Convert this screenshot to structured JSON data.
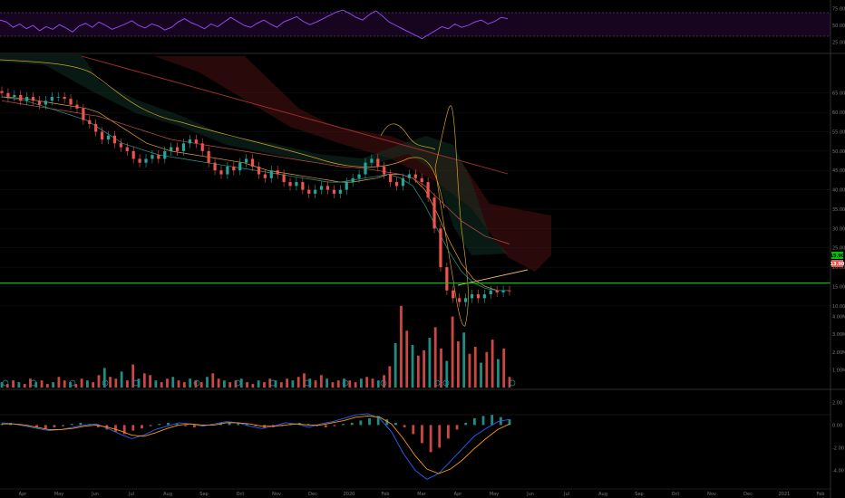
{
  "chart_data": [
    {
      "panel": "rsi",
      "type": "line",
      "ylim": [
        20,
        80
      ],
      "band_levels": [
        70,
        30
      ],
      "y_ticks": [
        "75.00",
        "50.00",
        "25.00"
      ],
      "color": "#9b4dff",
      "values": [
        58,
        55,
        47,
        52,
        45,
        50,
        42,
        48,
        44,
        51,
        46,
        40,
        49,
        53,
        47,
        55,
        50,
        44,
        48,
        52,
        57,
        50,
        46,
        52,
        49,
        43,
        47,
        55,
        60,
        54,
        50,
        45,
        52,
        48,
        55,
        62,
        56,
        50,
        47,
        53,
        58,
        52,
        47,
        55,
        59,
        63,
        56,
        51,
        55,
        60,
        65,
        70,
        73,
        68,
        62,
        58,
        66,
        72,
        64,
        55,
        50,
        45,
        40,
        35,
        30,
        36,
        42,
        48,
        45,
        52,
        47,
        50,
        55,
        58,
        52,
        56,
        62,
        60
      ]
    },
    {
      "panel": "price",
      "type": "candlestick",
      "ylim": [
        9.5,
        75
      ],
      "y_ticks": [
        "65.00",
        "60.00",
        "55.00",
        "50.00",
        "45.00",
        "40.00",
        "35.00",
        "30.00",
        "25.00",
        "20.00",
        "15.00",
        "10.00"
      ],
      "horizontal_line": 15.9,
      "last_price": 13.9,
      "price_tag_top": "15.90",
      "price_tag_bottom": "13.90",
      "up_color": "#26a69a",
      "down_color": "#ef5350",
      "close": [
        65,
        64,
        64.5,
        63,
        64,
        63,
        62,
        63,
        64,
        64,
        63.5,
        62,
        61,
        58,
        57,
        55,
        53,
        54,
        52,
        51,
        50,
        48,
        47,
        48,
        49,
        48,
        50,
        51,
        50,
        52,
        53,
        52,
        50,
        47,
        45,
        44,
        46,
        45,
        47,
        48,
        46,
        44,
        43,
        45,
        44,
        42,
        41,
        42,
        40,
        39,
        40,
        41,
        40,
        39,
        40,
        42,
        43,
        44,
        47,
        48,
        46,
        44,
        42,
        41,
        43,
        44,
        43,
        42,
        38,
        30,
        20,
        14,
        12,
        11,
        12,
        13,
        12,
        13,
        14,
        13.5,
        14,
        13.9
      ],
      "moving_averages": [
        {
          "color": "#e0a030",
          "values": [
            64,
            63.8,
            63.5,
            63,
            62.5,
            62,
            61.5,
            61,
            60,
            58,
            56,
            54,
            52,
            51,
            50,
            49.5,
            49,
            48.5,
            48,
            47.5,
            47,
            46,
            45,
            44.5,
            44,
            43.5,
            43,
            42.5,
            42,
            42,
            42.5,
            43,
            44,
            44,
            43,
            40,
            34,
            27,
            21,
            17,
            15,
            14,
            14
          ]
        },
        {
          "color": "#c0504d",
          "values": [
            63,
            62.5,
            62,
            61.5,
            61,
            60.5,
            60,
            59.5,
            59,
            58,
            57,
            56,
            55,
            54,
            53,
            52.5,
            52,
            51.5,
            51,
            50.5,
            50,
            49.5,
            49,
            48.5,
            48,
            47.5,
            47,
            46.5,
            46,
            45.8,
            45.5,
            45,
            44.5,
            44,
            43,
            41,
            38,
            35,
            32,
            30,
            28,
            27,
            26
          ]
        },
        {
          "color": "#2a9d8f",
          "values": [
            64,
            63.5,
            63,
            62,
            61,
            60,
            59,
            58,
            56,
            54,
            52,
            51,
            50,
            49,
            48.5,
            48,
            47.5,
            47,
            46.5,
            46,
            45.5,
            45,
            44.5,
            44,
            43.5,
            43,
            42.5,
            42,
            42,
            42.5,
            43,
            43.5,
            44,
            43,
            41,
            36,
            30,
            24,
            19,
            16,
            14.5,
            14,
            14
          ]
        }
      ]
    },
    {
      "panel": "volume",
      "type": "bar",
      "y_ticks": [
        "4.00M",
        "3.00M",
        "2.00M",
        "1.00M"
      ],
      "ylim": [
        0,
        5
      ],
      "values": [
        0.3,
        0.2,
        0.4,
        0.3,
        0.2,
        0.5,
        0.3,
        0.4,
        0.2,
        0.3,
        0.6,
        0.4,
        0.3,
        0.2,
        0.5,
        0.4,
        0.3,
        0.7,
        1.1,
        0.6,
        0.5,
        0.9,
        0.4,
        1.3,
        0.5,
        0.8,
        0.7,
        0.4,
        0.3,
        0.5,
        0.6,
        0.4,
        0.3,
        0.5,
        0.4,
        0.3,
        0.6,
        0.8,
        0.5,
        0.4,
        0.3,
        0.4,
        0.5,
        0.3,
        0.2,
        0.4,
        0.3,
        0.5,
        0.4,
        0.3,
        0.5,
        0.4,
        0.6,
        0.8,
        0.5,
        0.4,
        0.7,
        0.5,
        0.3,
        0.4,
        0.5,
        0.4,
        0.3,
        0.5,
        0.6,
        0.5,
        0.4,
        0.7,
        1.2,
        2.5,
        4.6,
        3.2,
        2.4,
        1.8,
        2.1,
        2.8,
        3.4,
        2.2,
        1.5,
        4.0,
        2.6,
        3.1,
        1.9,
        2.3,
        1.4,
        2.0,
        2.7,
        1.6,
        2.2,
        0.6
      ],
      "up_color": "#26a69a",
      "down_color": "#ef5350"
    },
    {
      "panel": "macd",
      "type": "bar",
      "ylim": [
        -5.5,
        3
      ],
      "y_ticks": [
        "2.00",
        "0.00",
        "-2.00",
        "-4.00",
        "-6.00"
      ],
      "histogram": [
        0.1,
        0.2,
        0.1,
        -0.1,
        -0.2,
        -0.3,
        -0.2,
        -0.1,
        0.1,
        0.2,
        0.1,
        -0.2,
        -0.4,
        -0.6,
        -0.8,
        -0.5,
        -0.3,
        -0.1,
        0.1,
        0.2,
        0.1,
        -0.1,
        -0.2,
        -0.1,
        0.1,
        0.2,
        0.3,
        0.2,
        0.1,
        -0.1,
        -0.3,
        -0.2,
        -0.1,
        0.1,
        0.2,
        0.1,
        -0.1,
        -0.2,
        -0.1,
        0.1,
        0.2,
        0.4,
        0.6,
        0.8,
        0.5,
        0.2,
        -0.2,
        -0.8,
        -1.6,
        -2.4,
        -2.0,
        -1.2,
        -0.4,
        0.2,
        0.6,
        0.8,
        0.9,
        0.7,
        0.5
      ],
      "macd": [
        0.2,
        0.1,
        -0.1,
        -0.3,
        -0.5,
        -0.4,
        -0.2,
        0,
        0.1,
        -0.3,
        -0.8,
        -1.2,
        -0.9,
        -0.4,
        -0.1,
        0.2,
        0.1,
        -0.1,
        0.1,
        0.3,
        0.2,
        -0.1,
        -0.3,
        -0.1,
        0.2,
        0.1,
        -0.2,
        0.1,
        0.3,
        0.6,
        0.9,
        1.0,
        0.6,
        -0.6,
        -2.5,
        -4.0,
        -4.8,
        -4.3,
        -3.2,
        -2.1,
        -1.0,
        -0.3,
        0.3,
        0.5
      ],
      "signal": [
        0.1,
        0.1,
        0,
        -0.2,
        -0.4,
        -0.4,
        -0.3,
        -0.1,
        0,
        -0.2,
        -0.5,
        -0.9,
        -1.0,
        -0.7,
        -0.3,
        0,
        0.1,
        0,
        0,
        0.2,
        0.2,
        0.1,
        -0.1,
        -0.1,
        0,
        0.1,
        0,
        0,
        0.2,
        0.4,
        0.7,
        0.8,
        0.7,
        0.1,
        -1.2,
        -2.7,
        -3.9,
        -4.3,
        -3.9,
        -3.1,
        -2.1,
        -1.2,
        -0.4,
        0.1
      ],
      "macd_color": "#2962ff",
      "signal_color": "#ff9800"
    }
  ],
  "x_axis": {
    "labels": [
      "Apr",
      "May",
      "Jun",
      "Jul",
      "Aug",
      "Sep",
      "Oct",
      "Nov",
      "Dec",
      "2020",
      "Feb",
      "Mar",
      "Apr",
      "May",
      "Jun",
      "Jul",
      "Aug",
      "Sep",
      "Oct",
      "Nov",
      "Dec",
      "2021",
      "Feb"
    ]
  },
  "colors": {
    "background": "#000000",
    "grid": "#1c1c1c",
    "separator": "#3a3a3a",
    "level_line": "#00e000",
    "cloud_down": "#5a1515",
    "cloud_up": "#123a2a",
    "bollinger": "#d4a020",
    "trendline": "#a03030"
  }
}
